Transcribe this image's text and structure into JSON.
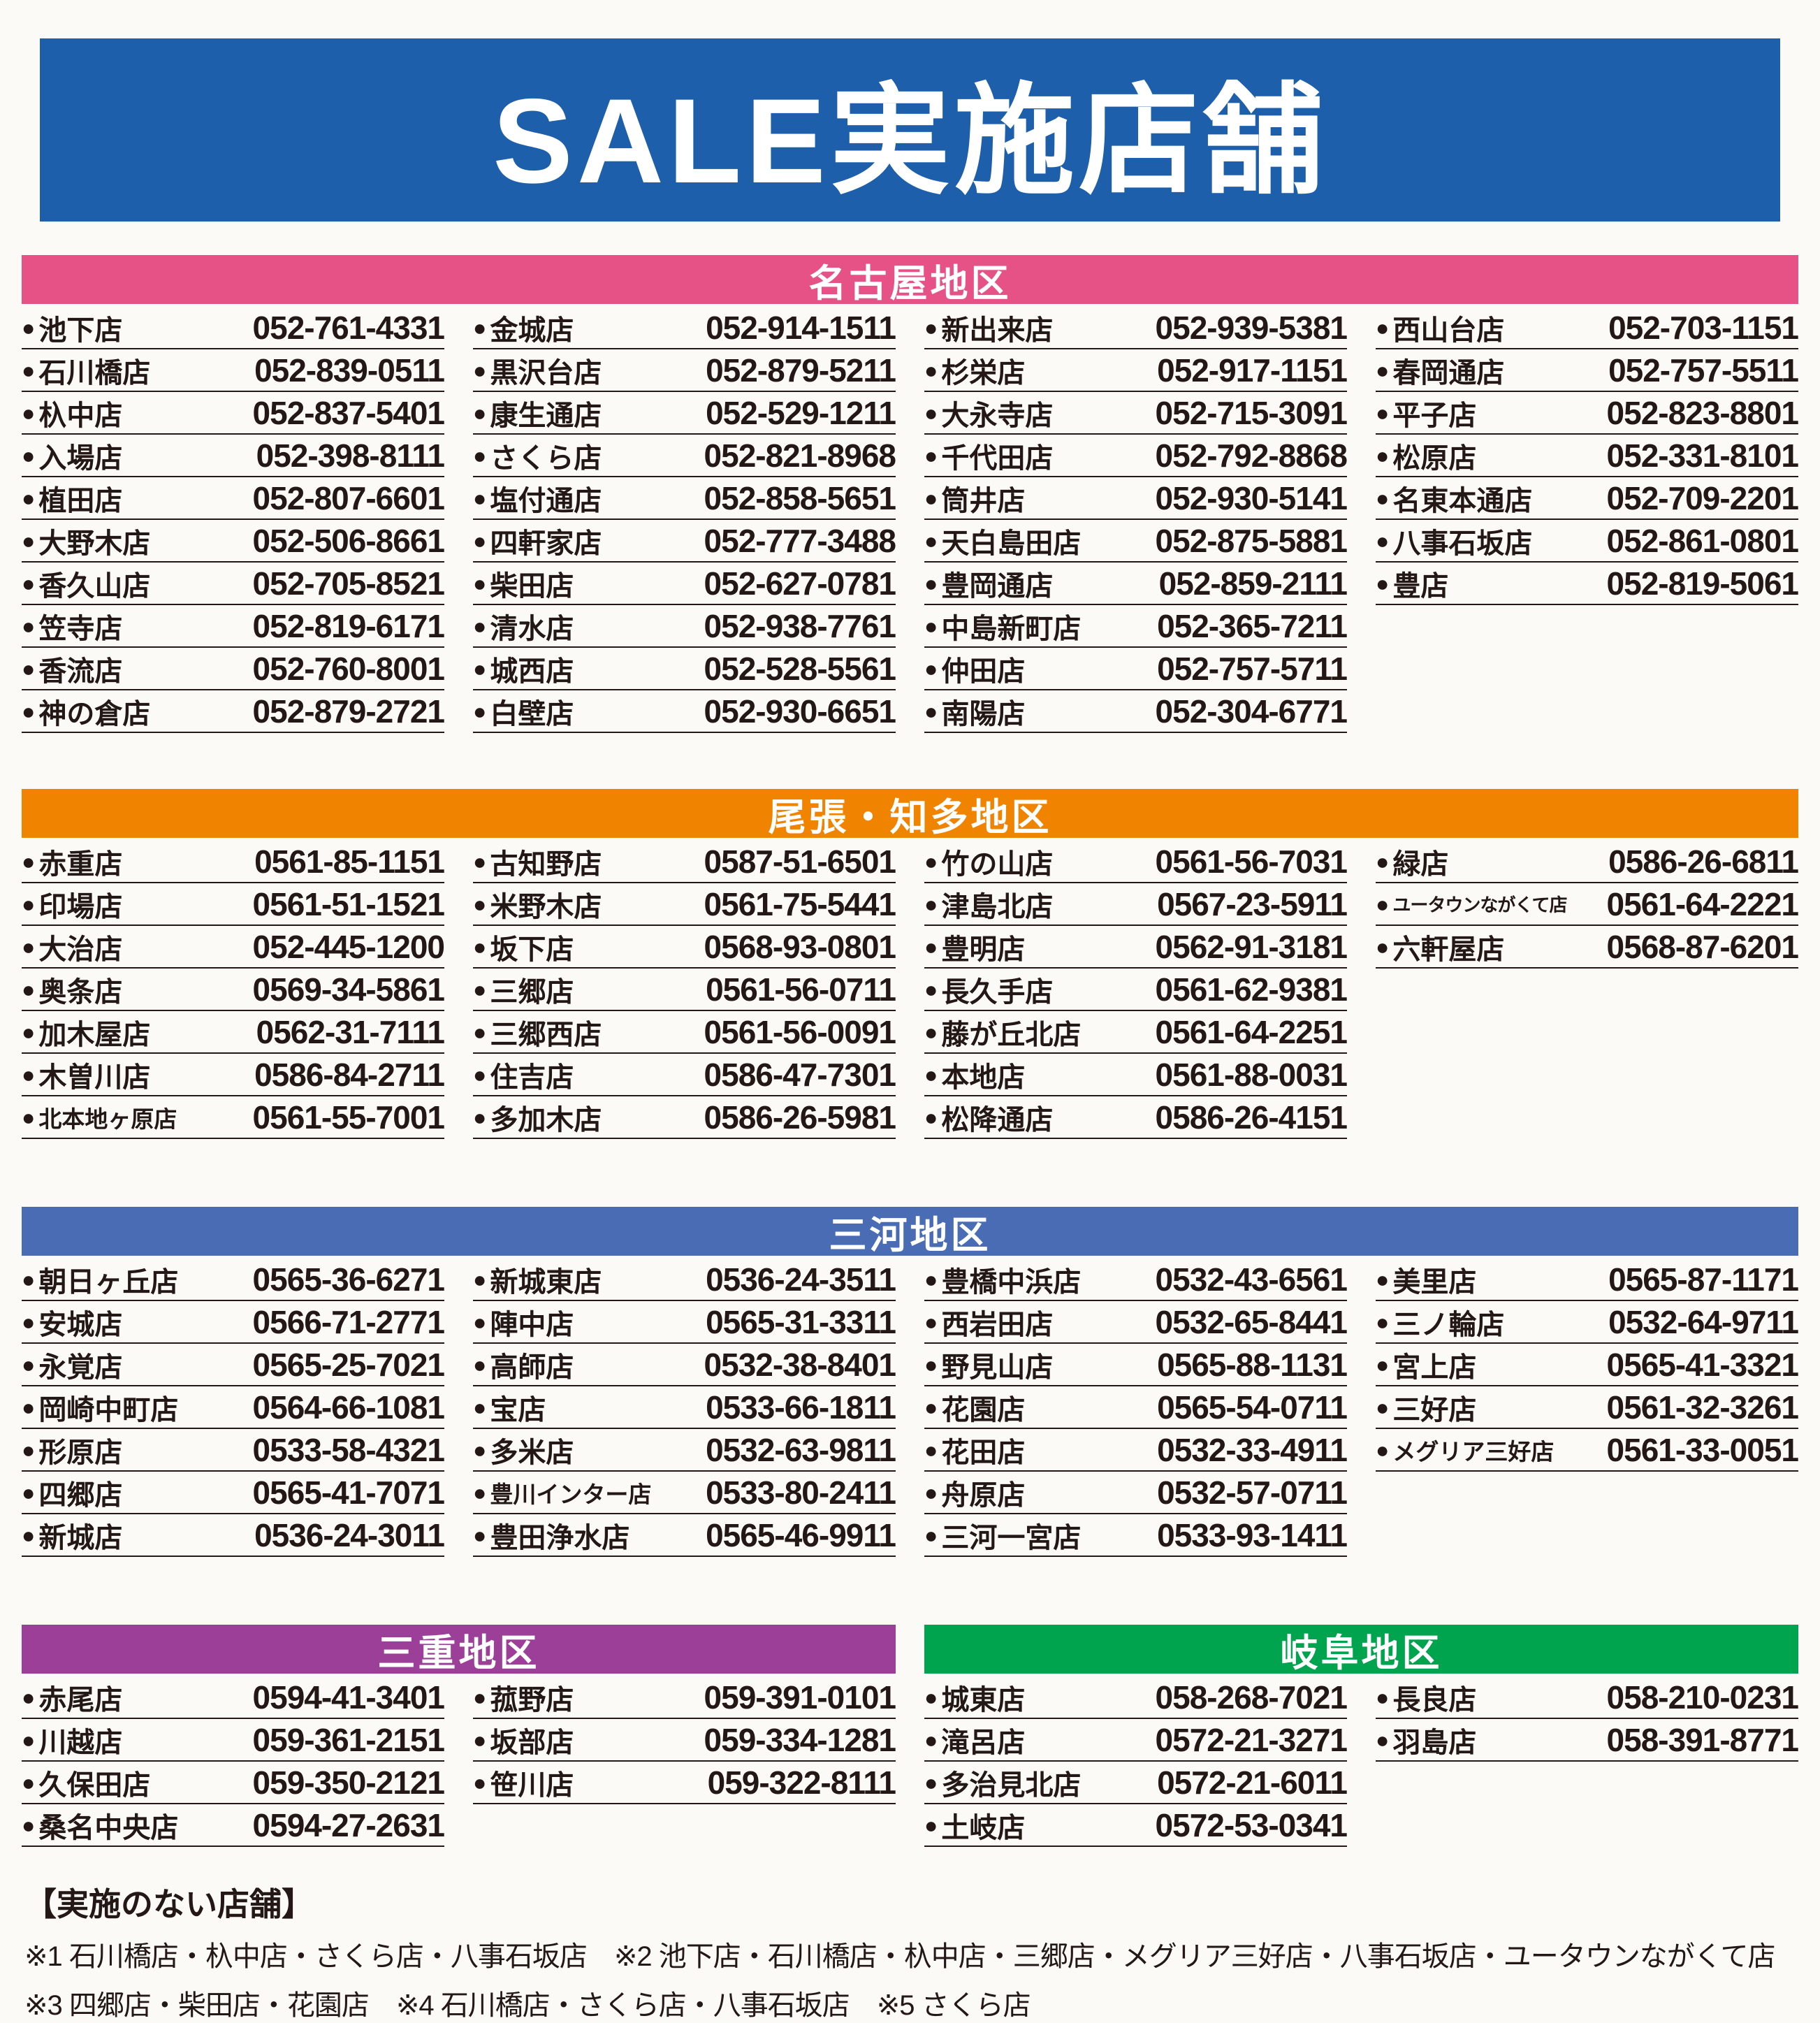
{
  "page": {
    "title": "SALE実施店舗",
    "colors": {
      "banner_blue": "#1e5fab",
      "nagoya_pink": "#e75286",
      "owari_orange": "#f08300",
      "mikawa_blue": "#4a6cb5",
      "mie_purple": "#9c3f98",
      "gifu_green": "#00a34e",
      "text_black": "#231815"
    }
  },
  "icons": {
    "bullet": "●"
  },
  "sections": [
    {
      "label": "名古屋地区",
      "color": "#e75286",
      "width": "full",
      "columns": [
        [
          {
            "name": "池下店",
            "phone": "052-761-4331"
          },
          {
            "name": "石川橋店",
            "phone": "052-839-0511"
          },
          {
            "name": "杁中店",
            "phone": "052-837-5401"
          },
          {
            "name": "入場店",
            "phone": "052-398-8111"
          },
          {
            "name": "植田店",
            "phone": "052-807-6601"
          },
          {
            "name": "大野木店",
            "phone": "052-506-8661"
          },
          {
            "name": "香久山店",
            "phone": "052-705-8521"
          },
          {
            "name": "笠寺店",
            "phone": "052-819-6171"
          },
          {
            "name": "香流店",
            "phone": "052-760-8001"
          },
          {
            "name": "神の倉店",
            "phone": "052-879-2721"
          }
        ],
        [
          {
            "name": "金城店",
            "phone": "052-914-1511"
          },
          {
            "name": "黒沢台店",
            "phone": "052-879-5211"
          },
          {
            "name": "康生通店",
            "phone": "052-529-1211"
          },
          {
            "name": "さくら店",
            "phone": "052-821-8968"
          },
          {
            "name": "塩付通店",
            "phone": "052-858-5651"
          },
          {
            "name": "四軒家店",
            "phone": "052-777-3488"
          },
          {
            "name": "柴田店",
            "phone": "052-627-0781"
          },
          {
            "name": "清水店",
            "phone": "052-938-7761"
          },
          {
            "name": "城西店",
            "phone": "052-528-5561"
          },
          {
            "name": "白壁店",
            "phone": "052-930-6651"
          }
        ],
        [
          {
            "name": "新出来店",
            "phone": "052-939-5381"
          },
          {
            "name": "杉栄店",
            "phone": "052-917-1151"
          },
          {
            "name": "大永寺店",
            "phone": "052-715-3091"
          },
          {
            "name": "千代田店",
            "phone": "052-792-8868"
          },
          {
            "name": "筒井店",
            "phone": "052-930-5141"
          },
          {
            "name": "天白島田店",
            "phone": "052-875-5881"
          },
          {
            "name": "豊岡通店",
            "phone": "052-859-2111"
          },
          {
            "name": "中島新町店",
            "phone": "052-365-7211"
          },
          {
            "name": "仲田店",
            "phone": "052-757-5711"
          },
          {
            "name": "南陽店",
            "phone": "052-304-6771"
          }
        ],
        [
          {
            "name": "西山台店",
            "phone": "052-703-1151"
          },
          {
            "name": "春岡通店",
            "phone": "052-757-5511"
          },
          {
            "name": "平子店",
            "phone": "052-823-8801"
          },
          {
            "name": "松原店",
            "phone": "052-331-8101"
          },
          {
            "name": "名東本通店",
            "phone": "052-709-2201"
          },
          {
            "name": "八事石坂店",
            "phone": "052-861-0801"
          },
          {
            "name": "豊店",
            "phone": "052-819-5061"
          }
        ]
      ]
    },
    {
      "label": "尾張・知多地区",
      "color": "#f08300",
      "width": "full",
      "columns": [
        [
          {
            "name": "赤重店",
            "phone": "0561-85-1151"
          },
          {
            "name": "印場店",
            "phone": "0561-51-1521"
          },
          {
            "name": "大治店",
            "phone": "052-445-1200"
          },
          {
            "name": "奥条店",
            "phone": "0569-34-5861"
          },
          {
            "name": "加木屋店",
            "phone": "0562-31-7111"
          },
          {
            "name": "木曽川店",
            "phone": "0586-84-2711"
          },
          {
            "name": "北本地ヶ原店",
            "phone": "0561-55-7001"
          }
        ],
        [
          {
            "name": "古知野店",
            "phone": "0587-51-6501"
          },
          {
            "name": "米野木店",
            "phone": "0561-75-5441"
          },
          {
            "name": "坂下店",
            "phone": "0568-93-0801"
          },
          {
            "name": "三郷店",
            "phone": "0561-56-0711"
          },
          {
            "name": "三郷西店",
            "phone": "0561-56-0091"
          },
          {
            "name": "住吉店",
            "phone": "0586-47-7301"
          },
          {
            "name": "多加木店",
            "phone": "0586-26-5981"
          }
        ],
        [
          {
            "name": "竹の山店",
            "phone": "0561-56-7031"
          },
          {
            "name": "津島北店",
            "phone": "0567-23-5911"
          },
          {
            "name": "豊明店",
            "phone": "0562-91-3181"
          },
          {
            "name": "長久手店",
            "phone": "0561-62-9381"
          },
          {
            "name": "藤が丘北店",
            "phone": "0561-64-2251"
          },
          {
            "name": "本地店",
            "phone": "0561-88-0031"
          },
          {
            "name": "松降通店",
            "phone": "0586-26-4151"
          }
        ],
        [
          {
            "name": "緑店",
            "phone": "0586-26-6811"
          },
          {
            "name": "ユータウンながくて店",
            "phone": "0561-64-2221"
          },
          {
            "name": "六軒屋店",
            "phone": "0568-87-6201"
          }
        ]
      ]
    },
    {
      "label": "三河地区",
      "color": "#4a6cb5",
      "width": "full",
      "columns": [
        [
          {
            "name": "朝日ヶ丘店",
            "phone": "0565-36-6271"
          },
          {
            "name": "安城店",
            "phone": "0566-71-2771"
          },
          {
            "name": "永覚店",
            "phone": "0565-25-7021"
          },
          {
            "name": "岡崎中町店",
            "phone": "0564-66-1081"
          },
          {
            "name": "形原店",
            "phone": "0533-58-4321"
          },
          {
            "name": "四郷店",
            "phone": "0565-41-7071"
          },
          {
            "name": "新城店",
            "phone": "0536-24-3011"
          }
        ],
        [
          {
            "name": "新城東店",
            "phone": "0536-24-3511"
          },
          {
            "name": "陣中店",
            "phone": "0565-31-3311"
          },
          {
            "name": "高師店",
            "phone": "0532-38-8401"
          },
          {
            "name": "宝店",
            "phone": "0533-66-1811"
          },
          {
            "name": "多米店",
            "phone": "0532-63-9811"
          },
          {
            "name": "豊川インター店",
            "phone": "0533-80-2411"
          },
          {
            "name": "豊田浄水店",
            "phone": "0565-46-9911"
          }
        ],
        [
          {
            "name": "豊橋中浜店",
            "phone": "0532-43-6561"
          },
          {
            "name": "西岩田店",
            "phone": "0532-65-8441"
          },
          {
            "name": "野見山店",
            "phone": "0565-88-1131"
          },
          {
            "name": "花園店",
            "phone": "0565-54-0711"
          },
          {
            "name": "花田店",
            "phone": "0532-33-4911"
          },
          {
            "name": "舟原店",
            "phone": "0532-57-0711"
          },
          {
            "name": "三河一宮店",
            "phone": "0533-93-1411"
          }
        ],
        [
          {
            "name": "美里店",
            "phone": "0565-87-1171"
          },
          {
            "name": "三ノ輪店",
            "phone": "0532-64-9711"
          },
          {
            "name": "宮上店",
            "phone": "0565-41-3321"
          },
          {
            "name": "三好店",
            "phone": "0561-32-3261"
          },
          {
            "name": "メグリア三好店",
            "phone": "0561-33-0051"
          }
        ]
      ]
    },
    {
      "label": "三重地区",
      "color": "#9c3f98",
      "width": "half",
      "columns": [
        [
          {
            "name": "赤尾店",
            "phone": "0594-41-3401"
          },
          {
            "name": "川越店",
            "phone": "059-361-2151"
          },
          {
            "name": "久保田店",
            "phone": "059-350-2121"
          },
          {
            "name": "桑名中央店",
            "phone": "0594-27-2631"
          }
        ],
        [
          {
            "name": "菰野店",
            "phone": "059-391-0101"
          },
          {
            "name": "坂部店",
            "phone": "059-334-1281"
          },
          {
            "name": "笹川店",
            "phone": "059-322-8111"
          }
        ]
      ]
    },
    {
      "label": "岐阜地区",
      "color": "#00a34e",
      "width": "half",
      "columns": [
        [
          {
            "name": "城東店",
            "phone": "058-268-7021"
          },
          {
            "name": "滝呂店",
            "phone": "0572-21-3271"
          },
          {
            "name": "多治見北店",
            "phone": "0572-21-6011"
          },
          {
            "name": "土岐店",
            "phone": "0572-53-0341"
          }
        ],
        [
          {
            "name": "長良店",
            "phone": "058-210-0231"
          },
          {
            "name": "羽島店",
            "phone": "058-391-8771"
          }
        ]
      ]
    }
  ],
  "footnotes": {
    "heading": "【実施のない店舗】",
    "lines": [
      "※1 石川橋店・杁中店・さくら店・八事石坂店　※2 池下店・石川橋店・杁中店・三郷店・メグリア三好店・八事石坂店・ユータウンながくて店",
      "※3 四郷店・柴田店・花園店　※4 石川橋店・さくら店・八事石坂店　※5 さくら店"
    ]
  }
}
